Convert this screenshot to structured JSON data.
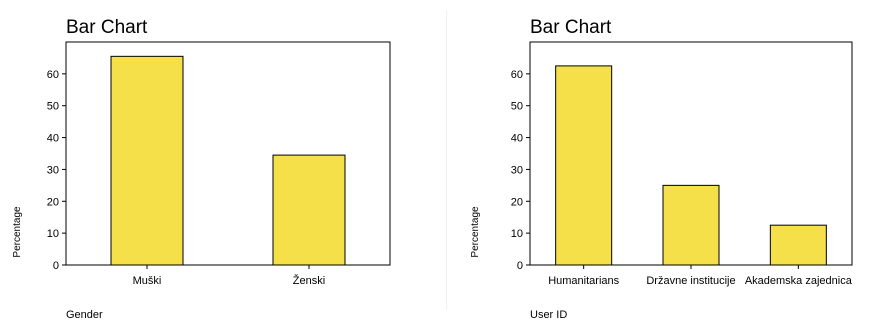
{
  "chart_data": [
    {
      "type": "bar",
      "title": "Bar Chart",
      "xlabel": "Gender",
      "ylabel": "Percentage",
      "categories": [
        "Muški",
        "Ženski"
      ],
      "values": [
        65.5,
        34.5
      ],
      "ylim": [
        0,
        70
      ],
      "yticks": [
        0,
        10,
        20,
        30,
        40,
        50,
        60
      ],
      "grid": false,
      "legend": "none",
      "bar_color": "#f5e04a",
      "bar_stroke": "#000000",
      "plot_background": "#ffffff"
    },
    {
      "type": "bar",
      "title": "Bar Chart",
      "xlabel": "User ID",
      "ylabel": "Percentage",
      "categories": [
        "Humanitarians",
        "Državne institucije",
        "Akademska zajednica"
      ],
      "values": [
        62.5,
        25.0,
        12.5
      ],
      "ylim": [
        0,
        70
      ],
      "yticks": [
        0,
        10,
        20,
        30,
        40,
        50,
        60
      ],
      "grid": false,
      "legend": "none",
      "bar_color": "#f5e04a",
      "bar_stroke": "#000000",
      "plot_background": "#ffffff"
    }
  ]
}
